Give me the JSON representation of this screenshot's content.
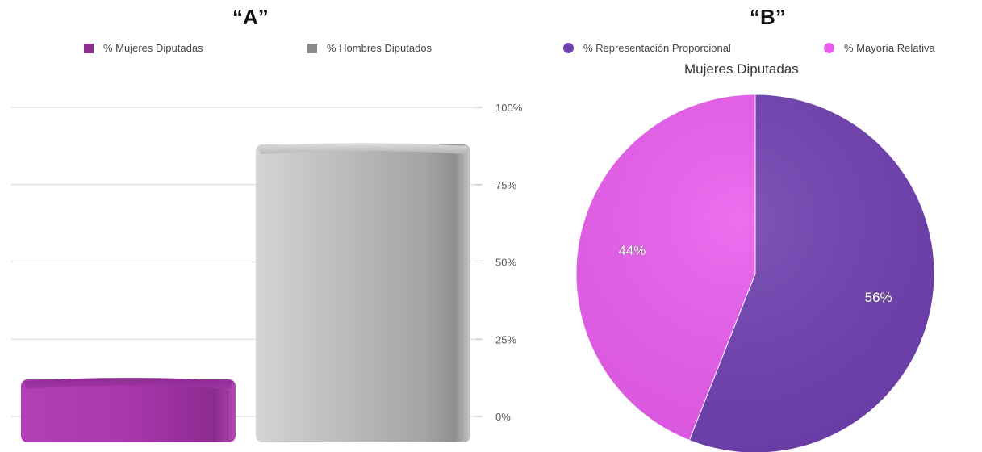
{
  "chart_data": [
    {
      "type": "bar",
      "panel_label": "“A”",
      "categories": [
        "% Mujeres Diputadas",
        "% Hombres Diputados"
      ],
      "values": [
        12,
        88
      ],
      "colors": [
        "#a338a8",
        "#b8b8b8"
      ],
      "legend": [
        "% Mujeres Diputadas",
        "% Hombres Diputados"
      ],
      "ylim": [
        0,
        100
      ],
      "yticks": [
        "0%",
        "25%",
        "50%",
        "75%",
        "100%"
      ],
      "ytick_values": [
        0,
        25,
        50,
        75,
        100
      ],
      "grid": true,
      "legend_position": "top"
    },
    {
      "type": "pie",
      "panel_label": "“B”",
      "title": "Mujeres Diputadas",
      "slices": [
        {
          "name": "% Representación Proporcional",
          "value": 56,
          "label": "56%",
          "color": "#6f3fb0"
        },
        {
          "name": "% Mayoría Relativa",
          "value": 44,
          "label": "44%",
          "color": "#e85ced"
        }
      ],
      "legend_position": "top"
    }
  ]
}
